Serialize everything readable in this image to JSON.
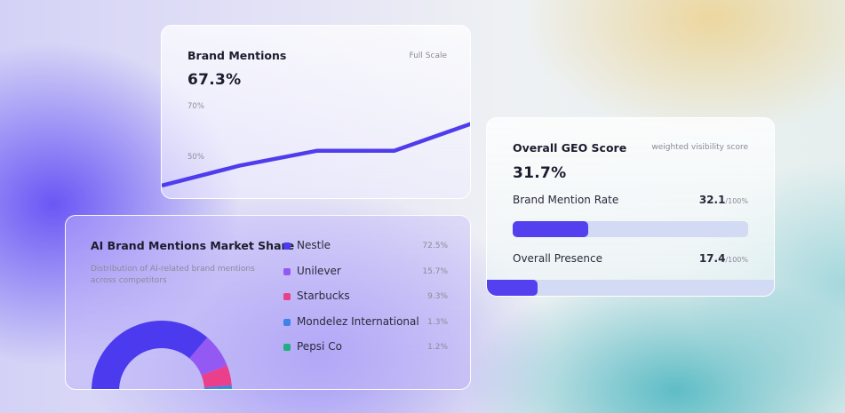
{
  "brand_mentions": {
    "title": "Brand Mentions",
    "scale_link": "Full Scale",
    "value": "67.3%",
    "y_ticks": [
      "70%",
      "50%"
    ],
    "line_color": "#4f3cec",
    "chart_data": {
      "type": "line",
      "ytick_labels": [
        "70%",
        "50%"
      ],
      "series": [
        {
          "values": [
            40,
            48,
            54,
            54,
            65
          ]
        }
      ]
    }
  },
  "geo": {
    "title": "Overall GEO Score",
    "subtitle": "weighted visibility score",
    "value": "31.7%",
    "metrics": [
      {
        "label": "Brand Mention Rate",
        "score": "32.1",
        "unit": "/100%",
        "fraction": 0.321
      },
      {
        "label": "Overall Presence",
        "score": "17.4",
        "unit": "/100%",
        "fraction": 0.174
      }
    ]
  },
  "market_share": {
    "title": "AI Brand Mentions Market Share",
    "description_line1": "Distribution of AI-related brand mentions",
    "description_line2": "across competitors",
    "chart_data": {
      "type": "pie",
      "categories": [
        "Nestle",
        "Unilever",
        "Starbucks",
        "Mondelez International",
        "Pepsi Co"
      ],
      "values": [
        72.5,
        15.7,
        9.3,
        1.3,
        1.2
      ],
      "labels": [
        "72.5%",
        "15.7%",
        "9.3%",
        "1.3%",
        "1.2%"
      ],
      "colors": [
        "#4c3aee",
        "#9459f2",
        "#ea3f8b",
        "#3f82ea",
        "#1fb07e"
      ]
    }
  }
}
